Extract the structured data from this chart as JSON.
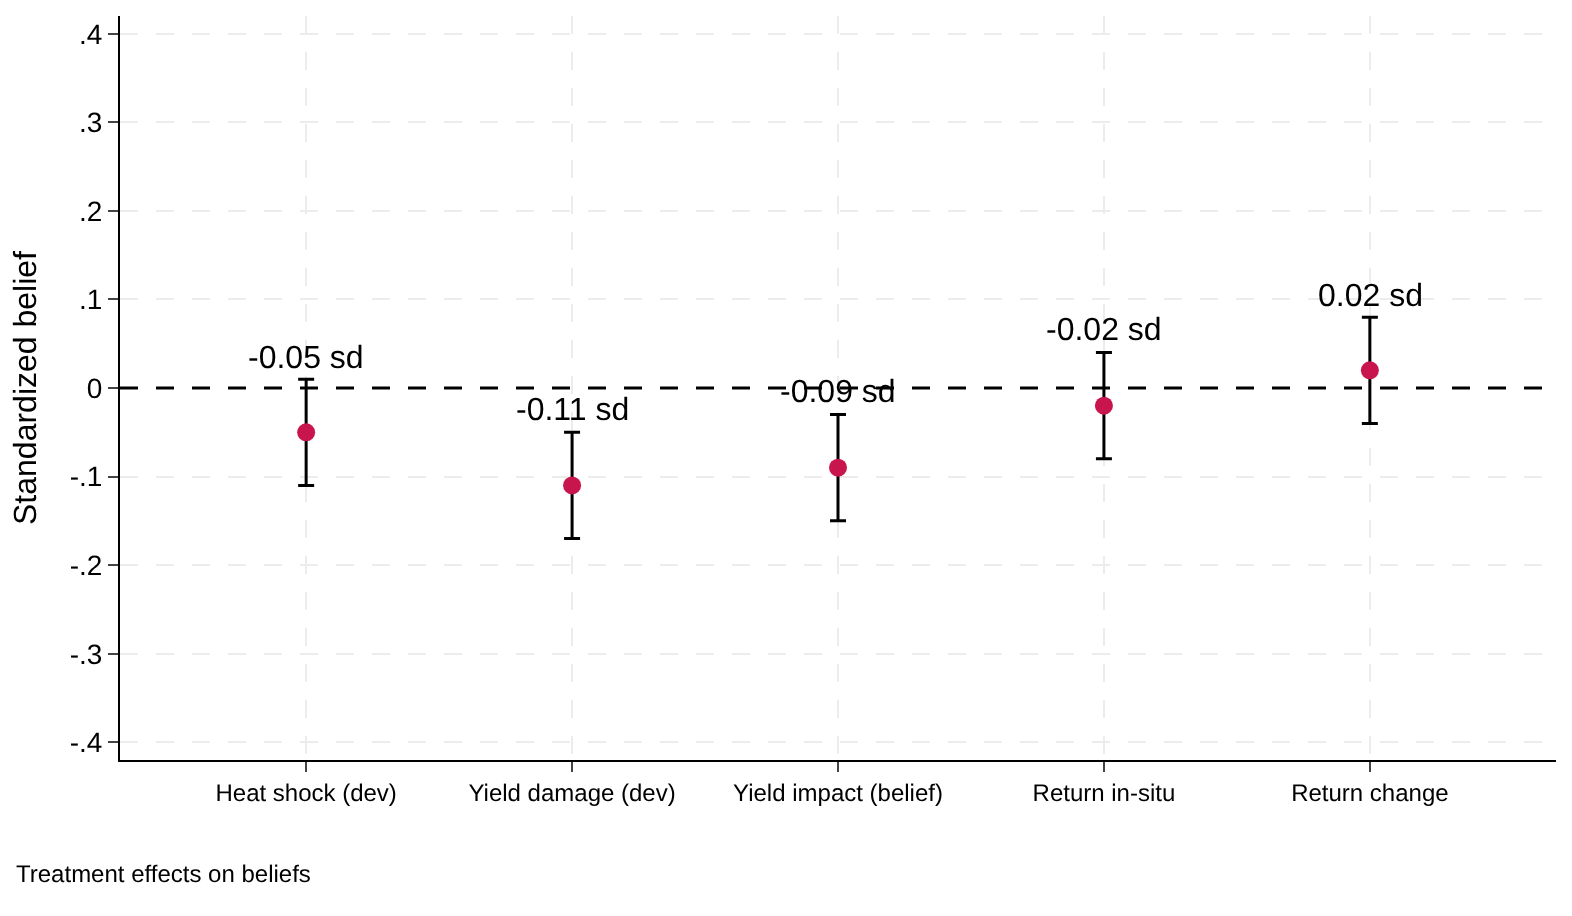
{
  "chart_data": {
    "type": "scatter",
    "ylabel": "Standardized belief",
    "categories": [
      "Heat shock (dev)",
      "Yield damage (dev)",
      "Yield impact (belief)",
      "Return in-situ",
      "Return change"
    ],
    "series": [
      {
        "color": "#c8154d",
        "values": [
          -0.05,
          -0.11,
          -0.09,
          -0.02,
          0.02
        ],
        "errors": [
          0.06,
          0.06,
          0.06,
          0.06,
          0.06
        ],
        "value_labels": [
          "-0.05 sd",
          "-0.11 sd",
          "-0.09 sd",
          "-0.02 sd",
          "0.02 sd"
        ]
      }
    ],
    "ylim": [
      -0.42,
      0.42
    ],
    "yticks": [
      {
        "value": -0.4,
        "label": "-.4"
      },
      {
        "value": -0.3,
        "label": "-.3"
      },
      {
        "value": -0.2,
        "label": "-.2"
      },
      {
        "value": -0.1,
        "label": "-.1"
      },
      0,
      {
        "value": 0.1,
        "label": ".1"
      },
      {
        "value": 0.2,
        "label": ".2"
      },
      {
        "value": 0.3,
        "label": ".3"
      },
      {
        "value": 0.4,
        "label": ".4"
      }
    ],
    "grid": true,
    "marker": "circle",
    "ref_lines": [
      {
        "axis": "y",
        "value": 0,
        "color": "#000000",
        "line_style": "dashed"
      }
    ],
    "annotations": [
      "Treatment effects on beliefs"
    ]
  }
}
